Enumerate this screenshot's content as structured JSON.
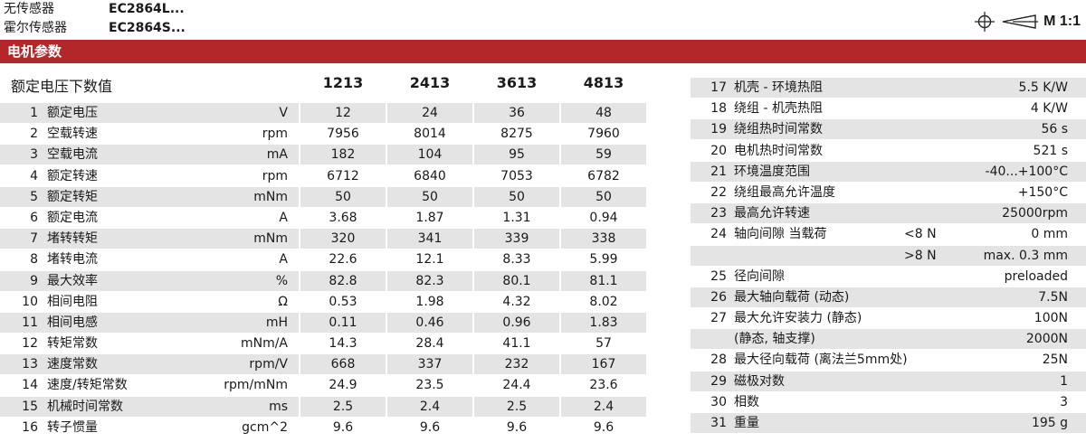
{
  "header": {
    "lines": [
      {
        "label": "无传感器",
        "value": "EC2864L..."
      },
      {
        "label": "霍尔传感器",
        "value": "EC2864S..."
      }
    ],
    "scale_text": "M 1:1"
  },
  "banner": "电机参数",
  "left_table": {
    "title": "额定电压下数值",
    "models": [
      "1213",
      "2413",
      "3613",
      "4813"
    ],
    "rows": [
      {
        "num": "1",
        "name": "额定电压",
        "unit": "V",
        "values": [
          "12",
          "24",
          "36",
          "48"
        ]
      },
      {
        "num": "2",
        "name": "空载转速",
        "unit": "rpm",
        "values": [
          "7956",
          "8014",
          "8275",
          "7960"
        ]
      },
      {
        "num": "3",
        "name": "空载电流",
        "unit": "mA",
        "values": [
          "182",
          "104",
          "95",
          "59"
        ]
      },
      {
        "num": "4",
        "name": "额定转速",
        "unit": "rpm",
        "values": [
          "6712",
          "6840",
          "7053",
          "6782"
        ]
      },
      {
        "num": "5",
        "name": "额定转矩",
        "unit": "mNm",
        "values": [
          "50",
          "50",
          "50",
          "50"
        ]
      },
      {
        "num": "6",
        "name": "额定电流",
        "unit": "A",
        "values": [
          "3.68",
          "1.87",
          "1.31",
          "0.94"
        ]
      },
      {
        "num": "7",
        "name": "堵转转矩",
        "unit": "mNm",
        "values": [
          "320",
          "341",
          "339",
          "338"
        ]
      },
      {
        "num": "8",
        "name": "堵转电流",
        "unit": "A",
        "values": [
          "22.6",
          "12.1",
          "8.33",
          "5.99"
        ]
      },
      {
        "num": "9",
        "name": "最大效率",
        "unit": "%",
        "values": [
          "82.8",
          "82.3",
          "80.1",
          "81.1"
        ]
      },
      {
        "num": "10",
        "name": "相间电阻",
        "unit": "Ω",
        "values": [
          "0.53",
          "1.98",
          "4.32",
          "8.02"
        ]
      },
      {
        "num": "11",
        "name": "相间电感",
        "unit": "mH",
        "values": [
          "0.11",
          "0.46",
          "0.96",
          "1.83"
        ]
      },
      {
        "num": "12",
        "name": "转矩常数",
        "unit": "mNm/A",
        "values": [
          "14.3",
          "28.4",
          "41.1",
          "57"
        ]
      },
      {
        "num": "13",
        "name": "速度常数",
        "unit": "rpm/V",
        "values": [
          "668",
          "337",
          "232",
          "167"
        ]
      },
      {
        "num": "14",
        "name": "速度/转矩常数",
        "unit": "rpm/mNm",
        "values": [
          "24.9",
          "23.5",
          "24.4",
          "23.6"
        ]
      },
      {
        "num": "15",
        "name": "机械时间常数",
        "unit": "ms",
        "values": [
          "2.5",
          "2.4",
          "2.5",
          "2.4"
        ]
      },
      {
        "num": "16",
        "name": "转子惯量",
        "unit": "gcm^2",
        "values": [
          "9.6",
          "9.6",
          "9.6",
          "9.6"
        ]
      }
    ]
  },
  "right_table": {
    "rows": [
      {
        "num": "17",
        "name": "机壳 - 环境热阻",
        "cond": "",
        "value": "5.5 K/W"
      },
      {
        "num": "18",
        "name": "绕组 - 机壳热阻",
        "cond": "",
        "value": "4 K/W"
      },
      {
        "num": "19",
        "name": "绕组热时间常数",
        "cond": "",
        "value": "56 s"
      },
      {
        "num": "20",
        "name": "电机热时间常数",
        "cond": "",
        "value": "521 s"
      },
      {
        "num": "21",
        "name": "环境温度范围",
        "cond": "",
        "value": "-40...+100°C"
      },
      {
        "num": "22",
        "name": "绕组最高允许温度",
        "cond": "",
        "value": "+150°C"
      },
      {
        "num": "23",
        "name": "最高允许转速",
        "cond": "",
        "value": "25000rpm"
      },
      {
        "num": "24",
        "name": "轴向间隙 当载荷",
        "cond": "<8 N",
        "value": "0 mm"
      },
      {
        "num": "",
        "name": "",
        "cond": ">8 N",
        "value": "max.  0.3 mm"
      },
      {
        "num": "25",
        "name": "径向间隙",
        "cond": "",
        "value": "preloaded"
      },
      {
        "num": "26",
        "name": "最大轴向载荷 (动态)",
        "cond": "",
        "value": "7.5N"
      },
      {
        "num": "27",
        "name": "最大允许安装力 (静态)",
        "cond": "",
        "value": "100N"
      },
      {
        "num": "",
        "name": "(静态, 轴支撑)",
        "cond": "",
        "value": "2000N"
      },
      {
        "num": "28",
        "name": "最大径向载荷 (离法兰5mm处)",
        "cond": "",
        "value": "25N"
      },
      {
        "num": "29",
        "name": "磁极对数",
        "cond": "",
        "value": "1"
      },
      {
        "num": "30",
        "name": "相数",
        "cond": "",
        "value": "3"
      },
      {
        "num": "31",
        "name": "重量",
        "cond": "",
        "value": "195 g"
      }
    ]
  },
  "colors": {
    "banner": "#b3262a",
    "stripe": "#e4e4e4"
  }
}
